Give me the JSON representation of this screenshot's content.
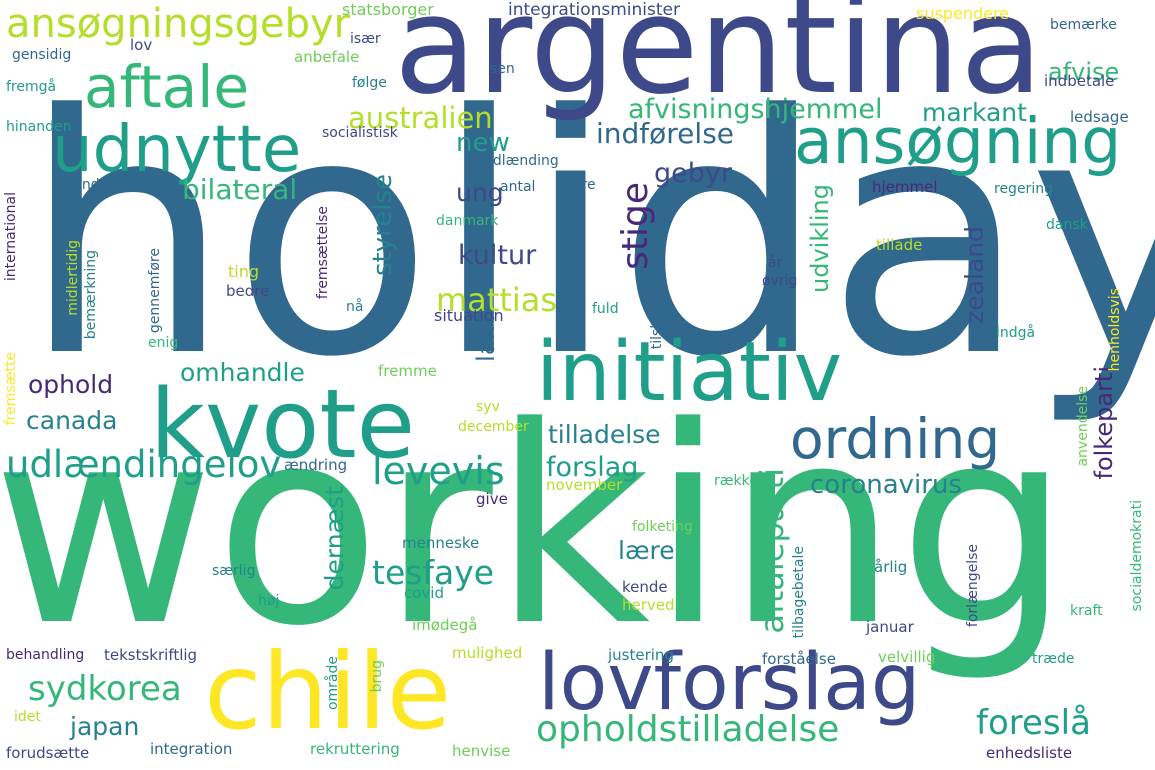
{
  "palette": {
    "c1": "#482878",
    "c2": "#3e4989",
    "c3": "#31688e",
    "c4": "#26828e",
    "c5": "#1f9e89",
    "c6": "#35b779",
    "c7": "#6ece58",
    "c8": "#b5de2b",
    "c9": "#fde725"
  },
  "words": [
    {
      "id": "holiday",
      "text": "holiday"
    },
    {
      "id": "working",
      "text": "working"
    },
    {
      "id": "argentina",
      "text": "argentina"
    },
    {
      "id": "chile",
      "text": "chile"
    },
    {
      "id": "kvote",
      "text": "kvote"
    },
    {
      "id": "initiativ",
      "text": "initiativ"
    },
    {
      "id": "lovforslag",
      "text": "lovforslag"
    },
    {
      "id": "udnytte",
      "text": "udnytte"
    },
    {
      "id": "ansogning",
      "text": "ansøgning"
    },
    {
      "id": "aftale",
      "text": "aftale"
    },
    {
      "id": "ordning",
      "text": "ordning"
    },
    {
      "id": "ansogningsgebyr",
      "text": "ansøgningsgebyr"
    },
    {
      "id": "opholdstilladelse",
      "text": "opholdstilladelse"
    },
    {
      "id": "udlaendingelov",
      "text": "udlændingelov"
    },
    {
      "id": "levevis",
      "text": "levevis"
    },
    {
      "id": "sydkorea",
      "text": "sydkorea"
    },
    {
      "id": "foresla",
      "text": "foreslå"
    },
    {
      "id": "stige",
      "text": "stige"
    },
    {
      "id": "tesfaye",
      "text": "tesfaye"
    },
    {
      "id": "mattias",
      "text": "mattias"
    },
    {
      "id": "australien",
      "text": "australien"
    },
    {
      "id": "afvisningshjemmel",
      "text": "afvisningshjemmel"
    },
    {
      "id": "indforelse",
      "text": "indførelse"
    },
    {
      "id": "bilateral",
      "text": "bilateral"
    },
    {
      "id": "kultur",
      "text": "kultur"
    },
    {
      "id": "gebyr",
      "text": "gebyr"
    },
    {
      "id": "omhandle",
      "text": "omhandle"
    },
    {
      "id": "ophold",
      "text": "ophold"
    },
    {
      "id": "canada",
      "text": "canada"
    },
    {
      "id": "coronavirus",
      "text": "coronavirus"
    },
    {
      "id": "forslag",
      "text": "forslag"
    },
    {
      "id": "tilladelse",
      "text": "tilladelse"
    },
    {
      "id": "aftaleparti",
      "text": "aftaleparti"
    },
    {
      "id": "folkeparti",
      "text": "folkeparti"
    },
    {
      "id": "zealand",
      "text": "zealand"
    },
    {
      "id": "udvikling",
      "text": "udvikling"
    },
    {
      "id": "styrelse",
      "text": "styrelse"
    },
    {
      "id": "land",
      "text": "land"
    },
    {
      "id": "new",
      "text": "new"
    },
    {
      "id": "ung",
      "text": "ung"
    },
    {
      "id": "japan",
      "text": "japan"
    },
    {
      "id": "laere",
      "text": "lære"
    },
    {
      "id": "dernaest",
      "text": "dernæst"
    },
    {
      "id": "markant",
      "text": "markant"
    },
    {
      "id": "afvise",
      "text": "afvise"
    },
    {
      "id": "statsborger",
      "text": "statsborger"
    },
    {
      "id": "integrationsminister",
      "text": "integrationsminister"
    },
    {
      "id": "suspendere",
      "text": "suspendere"
    },
    {
      "id": "bemaerke",
      "text": "bemærke"
    },
    {
      "id": "indbetale",
      "text": "indbetale"
    },
    {
      "id": "ledsage",
      "text": "ledsage"
    },
    {
      "id": "gensidig",
      "text": "gensidig"
    },
    {
      "id": "lov",
      "text": "lov"
    },
    {
      "id": "isaer",
      "text": "især"
    },
    {
      "id": "anbefale",
      "text": "anbefale"
    },
    {
      "id": "folge",
      "text": "følge"
    },
    {
      "id": "sen",
      "text": "sen"
    },
    {
      "id": "fremga",
      "text": "fremgå"
    },
    {
      "id": "hinanden",
      "text": "hinanden"
    },
    {
      "id": "socialistisk",
      "text": "socialistisk"
    },
    {
      "id": "udlaending",
      "text": "udlænding"
    },
    {
      "id": "indfore",
      "text": "indføre"
    },
    {
      "id": "antal",
      "text": "antal"
    },
    {
      "id": "fare",
      "text": "fare"
    },
    {
      "id": "hjemmel",
      "text": "hjemmel"
    },
    {
      "id": "regering",
      "text": "regering"
    },
    {
      "id": "danmark",
      "text": "danmark"
    },
    {
      "id": "dansk",
      "text": "dansk"
    },
    {
      "id": "tillade",
      "text": "tillade"
    },
    {
      "id": "ar",
      "text": "år"
    },
    {
      "id": "ting",
      "text": "ting"
    },
    {
      "id": "bedre",
      "text": "bedre"
    },
    {
      "id": "na",
      "text": "nå"
    },
    {
      "id": "ovrig",
      "text": "øvrig"
    },
    {
      "id": "situation",
      "text": "situation"
    },
    {
      "id": "fuld",
      "text": "fuld"
    },
    {
      "id": "enig",
      "text": "enig"
    },
    {
      "id": "indga",
      "text": "indgå"
    },
    {
      "id": "fremme",
      "text": "fremme"
    },
    {
      "id": "syv",
      "text": "syv"
    },
    {
      "id": "december",
      "text": "december"
    },
    {
      "id": "aendring",
      "text": "ændring"
    },
    {
      "id": "november",
      "text": "november"
    },
    {
      "id": "raekke",
      "text": "række"
    },
    {
      "id": "give",
      "text": "give"
    },
    {
      "id": "folketing",
      "text": "folketing"
    },
    {
      "id": "menneske",
      "text": "menneske"
    },
    {
      "id": "saerlig",
      "text": "særlig"
    },
    {
      "id": "kende",
      "text": "kende"
    },
    {
      "id": "herved",
      "text": "herved"
    },
    {
      "id": "arlig",
      "text": "årlig"
    },
    {
      "id": "hoj",
      "text": "høj"
    },
    {
      "id": "covid",
      "text": "covid"
    },
    {
      "id": "imodega",
      "text": "imødegå"
    },
    {
      "id": "januar",
      "text": "januar"
    },
    {
      "id": "kraft",
      "text": "kraft"
    },
    {
      "id": "behandling",
      "text": "behandling"
    },
    {
      "id": "tekstskriftlig",
      "text": "tekstskriftlig"
    },
    {
      "id": "mulighed",
      "text": "mulighed"
    },
    {
      "id": "justering",
      "text": "justering"
    },
    {
      "id": "forstaelse",
      "text": "forståelse"
    },
    {
      "id": "velvillig",
      "text": "velvillig"
    },
    {
      "id": "traede",
      "text": "træde"
    },
    {
      "id": "idet",
      "text": "idet"
    },
    {
      "id": "forudsaette",
      "text": "forudsætte"
    },
    {
      "id": "integration",
      "text": "integration"
    },
    {
      "id": "rekruttering",
      "text": "rekruttering"
    },
    {
      "id": "henvise",
      "text": "henvise"
    },
    {
      "id": "enhedsliste",
      "text": "enhedsliste"
    },
    {
      "id": "international",
      "text": "international"
    },
    {
      "id": "fremsaette",
      "text": "fremsætte"
    },
    {
      "id": "midlertidig",
      "text": "midlertidig"
    },
    {
      "id": "bemaerkning",
      "text": "bemærkning"
    },
    {
      "id": "gennemfore",
      "text": "gennemføre"
    },
    {
      "id": "fremsaettelse",
      "text": "fremsættelse"
    },
    {
      "id": "tilskrive",
      "text": "tilskrive"
    },
    {
      "id": "henholdsvis",
      "text": "henholdsvis"
    },
    {
      "id": "anvendelse",
      "text": "anvendelse"
    },
    {
      "id": "socialdemokrati",
      "text": "socialdemokrati"
    },
    {
      "id": "forlaengelse",
      "text": "forlængelse"
    },
    {
      "id": "tilbagebetale",
      "text": "tilbagebetale"
    },
    {
      "id": "omrade",
      "text": "område"
    },
    {
      "id": "brug",
      "text": "brug"
    }
  ]
}
